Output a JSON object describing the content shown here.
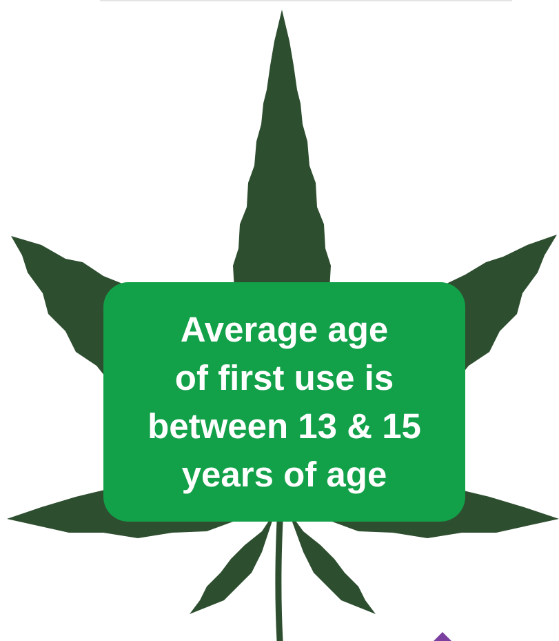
{
  "poster": {
    "message": "Average age\nof first use is\nbetween 13 & 15\nyears of age"
  },
  "icons": {
    "leaf": "cannabis-leaf-icon",
    "corner": "purple-arrow-icon"
  },
  "colors": {
    "leaf": "#2e4e30",
    "box": "#12a049",
    "text": "#ffffff",
    "accent": "#7b3fa0"
  }
}
